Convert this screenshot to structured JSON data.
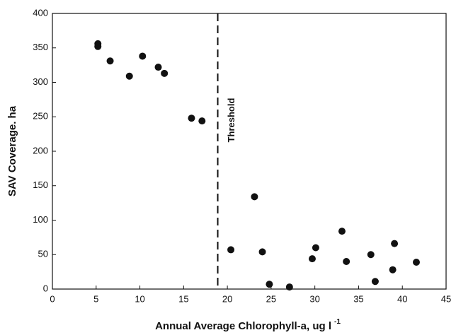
{
  "chart_data": {
    "type": "scatter",
    "xlabel": "Annual Average Chlorophyll-a, ug l",
    "xlabel_superscript": "-1",
    "ylabel": "SAV Coverage. ha",
    "color": "#111111",
    "x": [
      5.2,
      5.2,
      6.6,
      8.8,
      10.3,
      12.1,
      12.8,
      15.9,
      17.1,
      20.4,
      23.1,
      24.0,
      24.8,
      27.1,
      29.7,
      30.1,
      33.1,
      33.6,
      36.4,
      36.9,
      38.9,
      39.1,
      41.6
    ],
    "values": [
      356,
      352,
      331,
      309,
      338,
      322,
      313,
      248,
      244,
      57,
      134,
      54,
      7,
      3,
      44,
      60,
      84,
      40,
      50,
      11,
      28,
      66,
      39
    ],
    "xlim": [
      0,
      45
    ],
    "ylim": [
      0,
      400
    ],
    "xticks": [
      0,
      5,
      10,
      15,
      20,
      25,
      30,
      35,
      40,
      45
    ],
    "yticks": [
      0,
      50,
      100,
      150,
      200,
      250,
      300,
      350,
      400
    ],
    "threshold": {
      "label": "Threshold",
      "value": 18.9
    }
  }
}
